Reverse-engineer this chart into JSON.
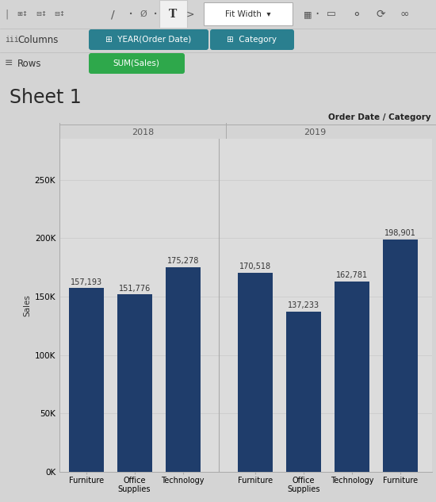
{
  "title": "Sheet 1",
  "header_label": "Order Date / Category",
  "values_2018": [
    157193,
    151776,
    175278
  ],
  "values_2019": [
    170518,
    137233,
    162781,
    198901
  ],
  "bar_color": "#1f3d6b",
  "bg_color": "#d4d4d4",
  "chart_bg_color": "#dcdcdc",
  "yticks": [
    0,
    50000,
    100000,
    150000,
    200000,
    250000
  ],
  "ytick_labels": [
    "0K",
    "50K",
    "100K",
    "150K",
    "200K",
    "250K"
  ],
  "ylabel": "Sales",
  "bar_label_fontsize": 7.0,
  "axis_label_fontsize": 7.5,
  "title_fontsize": 17,
  "columns_pill_color": "#2a7f8f",
  "rows_pill_color": "#2ea84b",
  "columns_pills": [
    "YEAR(Order Date)",
    "Category"
  ],
  "rows_pills": [
    "SUM(Sales)"
  ]
}
